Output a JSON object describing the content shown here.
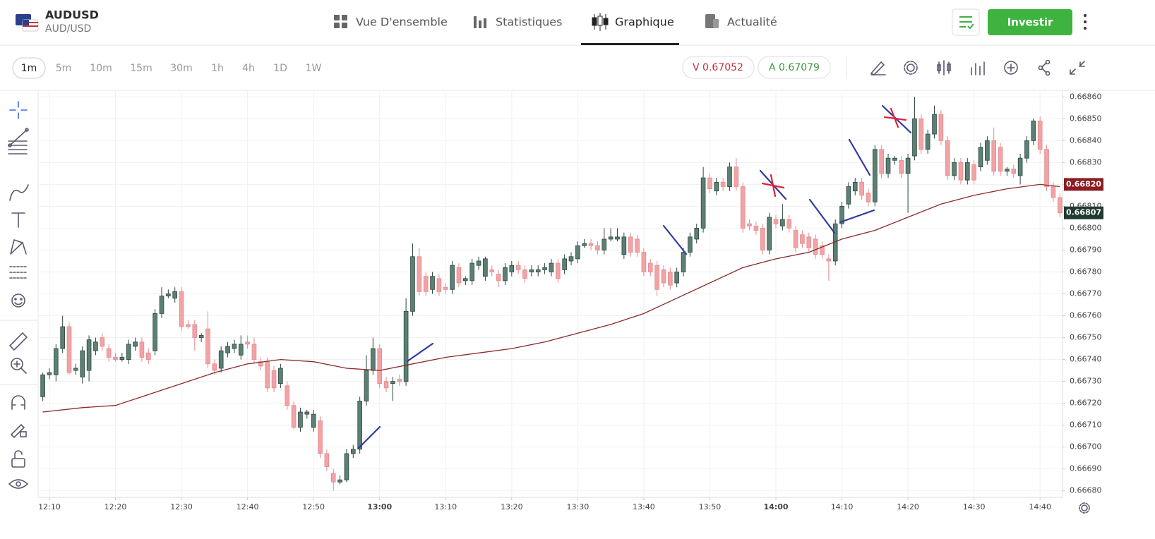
{
  "header": {
    "symbol": "AUDUSD",
    "pair": "AUD/USD",
    "tabs": [
      "Vue D'ensemble",
      "Statistiques",
      "Graphique",
      "Actualité"
    ],
    "active_tab": 2,
    "button": "Investir"
  },
  "toolbar": {
    "timeframes": [
      "1m",
      "5m",
      "10m",
      "15m",
      "30m",
      "1h",
      "4h",
      "1D",
      "1W"
    ],
    "active_timeframe": 0,
    "sell": "V 0.67052",
    "buy": "A 0.67079"
  },
  "chart_data": {
    "type": "candlestick",
    "up_color": "#5c8074",
    "up_edge": "#2b463d",
    "down_color": "#f2a3a6",
    "down_edge": "#e38a8e",
    "xlim": [
      728.4,
      883.4
    ],
    "xticks": [
      {
        "value": 730,
        "label": "12:10"
      },
      {
        "value": 740,
        "label": "12:20"
      },
      {
        "value": 750,
        "label": "12:30"
      },
      {
        "value": 760,
        "label": "12:40"
      },
      {
        "value": 770,
        "label": "12:50"
      },
      {
        "value": 780,
        "label": "13:00"
      },
      {
        "value": 790,
        "label": "13:10"
      },
      {
        "value": 800,
        "label": "13:20"
      },
      {
        "value": 810,
        "label": "13:30"
      },
      {
        "value": 820,
        "label": "13:40"
      },
      {
        "value": 830,
        "label": "13:50"
      },
      {
        "value": 840,
        "label": "14:00"
      },
      {
        "value": 850,
        "label": "14:10"
      },
      {
        "value": 860,
        "label": "14:20"
      },
      {
        "value": 870,
        "label": "14:30"
      },
      {
        "value": 880,
        "label": "14:40"
      }
    ],
    "ylim": [
      0.66677,
      0.66863
    ],
    "yticks": [
      {
        "value": 0.6668,
        "label": "0.66680"
      },
      {
        "value": 0.6669,
        "label": "0.66690"
      },
      {
        "value": 0.667,
        "label": "0.66700"
      },
      {
        "value": 0.6671,
        "label": "0.66710"
      },
      {
        "value": 0.6672,
        "label": "0.66720"
      },
      {
        "value": 0.6673,
        "label": "0.66730"
      },
      {
        "value": 0.6674,
        "label": "0.66740"
      },
      {
        "value": 0.6675,
        "label": "0.66750"
      },
      {
        "value": 0.6676,
        "label": "0.66760"
      },
      {
        "value": 0.6677,
        "label": "0.66770"
      },
      {
        "value": 0.6678,
        "label": "0.66780"
      },
      {
        "value": 0.6679,
        "label": "0.66790"
      },
      {
        "value": 0.668,
        "label": "0.66800"
      },
      {
        "value": 0.6681,
        "label": "0.66810"
      },
      {
        "value": 0.6682,
        "label": "0.66820"
      },
      {
        "value": 0.6683,
        "label": "0.66830"
      },
      {
        "value": 0.6684,
        "label": "0.66840"
      },
      {
        "value": 0.6685,
        "label": "0.66850"
      },
      {
        "value": 0.6686,
        "label": "0.66860"
      }
    ],
    "grid": true,
    "candles": [
      [
        729,
        0.66723,
        0.66734,
        0.66721,
        0.66733
      ],
      [
        730,
        0.66733,
        0.66736,
        0.66731,
        0.66734
      ],
      [
        731,
        0.66733,
        0.66747,
        0.6673,
        0.66745
      ],
      [
        732,
        0.66745,
        0.6676,
        0.66743,
        0.66755
      ],
      [
        733,
        0.66755,
        0.66757,
        0.66733,
        0.66734
      ],
      [
        734,
        0.66735,
        0.66738,
        0.66733,
        0.66736
      ],
      [
        735,
        0.66732,
        0.66746,
        0.66729,
        0.66744
      ],
      [
        736,
        0.66735,
        0.66751,
        0.6673,
        0.66749
      ],
      [
        737,
        0.66744,
        0.6675,
        0.66742,
        0.66748
      ],
      [
        738,
        0.6675,
        0.66752,
        0.66744,
        0.66746
      ],
      [
        739,
        0.66745,
        0.66747,
        0.66739,
        0.66741
      ],
      [
        740,
        0.66741,
        0.66743,
        0.66739,
        0.6674
      ],
      [
        741,
        0.6674,
        0.66743,
        0.66739,
        0.66741
      ],
      [
        742,
        0.6674,
        0.66749,
        0.66738,
        0.66747
      ],
      [
        743,
        0.66746,
        0.6675,
        0.66744,
        0.66748
      ],
      [
        744,
        0.66748,
        0.6675,
        0.66739,
        0.66741
      ],
      [
        745,
        0.66743,
        0.66745,
        0.66738,
        0.6674
      ],
      [
        746,
        0.66744,
        0.66763,
        0.66742,
        0.66761
      ],
      [
        747,
        0.66761,
        0.66773,
        0.66759,
        0.66769
      ],
      [
        748,
        0.66769,
        0.66772,
        0.66768,
        0.6677
      ],
      [
        749,
        0.66768,
        0.66773,
        0.66766,
        0.66771
      ],
      [
        750,
        0.66771,
        0.66773,
        0.66753,
        0.66755
      ],
      [
        751,
        0.66756,
        0.66758,
        0.66754,
        0.66755
      ],
      [
        752,
        0.66756,
        0.66758,
        0.66744,
        0.6675
      ],
      [
        753,
        0.6675,
        0.66752,
        0.66748,
        0.66751
      ],
      [
        754,
        0.66754,
        0.66762,
        0.66736,
        0.66738
      ],
      [
        755,
        0.66738,
        0.6674,
        0.66733,
        0.66735
      ],
      [
        756,
        0.66736,
        0.66746,
        0.66734,
        0.66744
      ],
      [
        757,
        0.66743,
        0.66748,
        0.66741,
        0.66746
      ],
      [
        758,
        0.66745,
        0.66749,
        0.66743,
        0.66747
      ],
      [
        759,
        0.66742,
        0.66751,
        0.6674,
        0.66747
      ],
      [
        760,
        0.66748,
        0.66751,
        0.66745,
        0.66747
      ],
      [
        761,
        0.66747,
        0.6675,
        0.66738,
        0.6674
      ],
      [
        762,
        0.66739,
        0.66741,
        0.66735,
        0.66737
      ],
      [
        763,
        0.66739,
        0.66741,
        0.66725,
        0.66727
      ],
      [
        764,
        0.66735,
        0.66737,
        0.66725,
        0.66727
      ],
      [
        765,
        0.66729,
        0.66738,
        0.66727,
        0.66736
      ],
      [
        766,
        0.66728,
        0.6673,
        0.66717,
        0.66719
      ],
      [
        767,
        0.66719,
        0.66721,
        0.66708,
        0.66709
      ],
      [
        768,
        0.66709,
        0.66718,
        0.66707,
        0.66716
      ],
      [
        769,
        0.66715,
        0.66717,
        0.66713,
        0.66716
      ],
      [
        770,
        0.66709,
        0.66717,
        0.66707,
        0.66715
      ],
      [
        771,
        0.66712,
        0.66714,
        0.66695,
        0.66697
      ],
      [
        772,
        0.66697,
        0.66699,
        0.66689,
        0.66691
      ],
      [
        773,
        0.66688,
        0.6669,
        0.6668,
        0.66684
      ],
      [
        774,
        0.66684,
        0.66687,
        0.66683,
        0.66685
      ],
      [
        775,
        0.66685,
        0.66699,
        0.66684,
        0.66697
      ],
      [
        776,
        0.66697,
        0.66701,
        0.66695,
        0.66699
      ],
      [
        777,
        0.66699,
        0.66723,
        0.66697,
        0.66721
      ],
      [
        778,
        0.66721,
        0.66742,
        0.66719,
        0.66735
      ],
      [
        779,
        0.66735,
        0.6675,
        0.66733,
        0.66745
      ],
      [
        780,
        0.66745,
        0.66747,
        0.66727,
        0.66729
      ],
      [
        781,
        0.6673,
        0.66732,
        0.66725,
        0.66727
      ],
      [
        782,
        0.66729,
        0.66732,
        0.66721,
        0.6673
      ],
      [
        783,
        0.66731,
        0.66733,
        0.66728,
        0.6673
      ],
      [
        784,
        0.6673,
        0.66768,
        0.66728,
        0.66762
      ],
      [
        785,
        0.66762,
        0.66793,
        0.6676,
        0.66787
      ],
      [
        786,
        0.66787,
        0.66791,
        0.66769,
        0.66771
      ],
      [
        787,
        0.66778,
        0.6678,
        0.66769,
        0.66771
      ],
      [
        788,
        0.66772,
        0.6678,
        0.6677,
        0.66778
      ],
      [
        789,
        0.66777,
        0.66779,
        0.66769,
        0.66771
      ],
      [
        790,
        0.66773,
        0.66775,
        0.6677,
        0.66772
      ],
      [
        791,
        0.66772,
        0.66785,
        0.6677,
        0.66783
      ],
      [
        792,
        0.66782,
        0.66784,
        0.66773,
        0.66775
      ],
      [
        793,
        0.66776,
        0.66778,
        0.66774,
        0.66777
      ],
      [
        794,
        0.66776,
        0.66786,
        0.66774,
        0.66784
      ],
      [
        795,
        0.66783,
        0.66787,
        0.66781,
        0.66785
      ],
      [
        796,
        0.66778,
        0.66787,
        0.66776,
        0.66786
      ],
      [
        797,
        0.66781,
        0.66783,
        0.66778,
        0.6678
      ],
      [
        798,
        0.66779,
        0.66781,
        0.66773,
        0.66776
      ],
      [
        799,
        0.66776,
        0.66784,
        0.66774,
        0.66782
      ],
      [
        800,
        0.6678,
        0.66785,
        0.66778,
        0.66783
      ],
      [
        801,
        0.66783,
        0.66785,
        0.66779,
        0.66781
      ],
      [
        802,
        0.66781,
        0.66783,
        0.66775,
        0.66777
      ],
      [
        803,
        0.6678,
        0.66783,
        0.66778,
        0.66781
      ],
      [
        804,
        0.6678,
        0.66783,
        0.66778,
        0.66781
      ],
      [
        805,
        0.66781,
        0.66784,
        0.66779,
        0.66782
      ],
      [
        806,
        0.6678,
        0.66786,
        0.66778,
        0.66784
      ],
      [
        807,
        0.66784,
        0.66786,
        0.66775,
        0.66777
      ],
      [
        808,
        0.66781,
        0.66788,
        0.66779,
        0.66786
      ],
      [
        809,
        0.66785,
        0.66789,
        0.66783,
        0.66787
      ],
      [
        810,
        0.66786,
        0.66794,
        0.66784,
        0.66792
      ],
      [
        811,
        0.66792,
        0.66795,
        0.66791,
        0.66793
      ],
      [
        812,
        0.66793,
        0.66795,
        0.6679,
        0.66792
      ],
      [
        813,
        0.66792,
        0.66794,
        0.66788,
        0.6679
      ],
      [
        814,
        0.6679,
        0.668,
        0.66788,
        0.66795
      ],
      [
        815,
        0.66795,
        0.668,
        0.66794,
        0.66796
      ],
      [
        816,
        0.66795,
        0.668,
        0.66794,
        0.66796
      ],
      [
        817,
        0.66788,
        0.66798,
        0.66786,
        0.66796
      ],
      [
        818,
        0.66796,
        0.66798,
        0.66787,
        0.66789
      ],
      [
        819,
        0.66795,
        0.66797,
        0.66787,
        0.66789
      ],
      [
        820,
        0.66789,
        0.66791,
        0.66778,
        0.6678
      ],
      [
        821,
        0.66784,
        0.66786,
        0.66778,
        0.6678
      ],
      [
        822,
        0.66783,
        0.66785,
        0.66769,
        0.66772
      ],
      [
        823,
        0.66781,
        0.66783,
        0.66773,
        0.66775
      ],
      [
        824,
        0.6678,
        0.66782,
        0.66772,
        0.66774
      ],
      [
        825,
        0.66775,
        0.66782,
        0.66773,
        0.6678
      ],
      [
        826,
        0.6678,
        0.66791,
        0.66778,
        0.66789
      ],
      [
        827,
        0.66789,
        0.66798,
        0.66787,
        0.66796
      ],
      [
        828,
        0.66795,
        0.66802,
        0.66793,
        0.668
      ],
      [
        829,
        0.668,
        0.66828,
        0.66798,
        0.66823
      ],
      [
        830,
        0.66823,
        0.66825,
        0.66816,
        0.66818
      ],
      [
        831,
        0.66817,
        0.66823,
        0.66815,
        0.66821
      ],
      [
        832,
        0.66821,
        0.66823,
        0.66817,
        0.66819
      ],
      [
        833,
        0.66819,
        0.6683,
        0.66817,
        0.66828
      ],
      [
        834,
        0.66828,
        0.66832,
        0.66817,
        0.66819
      ],
      [
        835,
        0.66819,
        0.66821,
        0.66798,
        0.668
      ],
      [
        836,
        0.66802,
        0.66804,
        0.66799,
        0.66801
      ],
      [
        837,
        0.66801,
        0.66803,
        0.66797,
        0.66799
      ],
      [
        838,
        0.668,
        0.66802,
        0.66788,
        0.6679
      ],
      [
        839,
        0.6679,
        0.66807,
        0.66788,
        0.66805
      ],
      [
        840,
        0.66804,
        0.66806,
        0.668,
        0.66802
      ],
      [
        841,
        0.66801,
        0.66811,
        0.66799,
        0.66804
      ],
      [
        842,
        0.66804,
        0.66806,
        0.66798,
        0.668
      ],
      [
        843,
        0.66799,
        0.66801,
        0.66789,
        0.66791
      ],
      [
        844,
        0.66797,
        0.66799,
        0.66791,
        0.66793
      ],
      [
        845,
        0.66796,
        0.66798,
        0.66789,
        0.66791
      ],
      [
        846,
        0.66795,
        0.66797,
        0.66786,
        0.66788
      ],
      [
        847,
        0.66792,
        0.66794,
        0.66786,
        0.66788
      ],
      [
        848,
        0.66786,
        0.66788,
        0.66776,
        0.66785
      ],
      [
        849,
        0.66785,
        0.66804,
        0.66783,
        0.66802
      ],
      [
        850,
        0.66802,
        0.66812,
        0.668,
        0.6681
      ],
      [
        851,
        0.66811,
        0.66821,
        0.66809,
        0.66819
      ],
      [
        852,
        0.66817,
        0.66823,
        0.66815,
        0.66821
      ],
      [
        853,
        0.66821,
        0.66823,
        0.66813,
        0.66815
      ],
      [
        854,
        0.66816,
        0.66818,
        0.6681,
        0.66812
      ],
      [
        855,
        0.66812,
        0.66838,
        0.6681,
        0.66836
      ],
      [
        856,
        0.66836,
        0.66838,
        0.66823,
        0.66825
      ],
      [
        857,
        0.66825,
        0.66834,
        0.66823,
        0.66832
      ],
      [
        858,
        0.66831,
        0.66833,
        0.66829,
        0.66832
      ],
      [
        859,
        0.66831,
        0.66833,
        0.66823,
        0.66825
      ],
      [
        860,
        0.66825,
        0.66834,
        0.66807,
        0.66832
      ],
      [
        861,
        0.66833,
        0.6686,
        0.66831,
        0.6685
      ],
      [
        862,
        0.6685,
        0.66852,
        0.66834,
        0.66836
      ],
      [
        863,
        0.66836,
        0.66845,
        0.66834,
        0.66843
      ],
      [
        864,
        0.66843,
        0.66856,
        0.66841,
        0.66852
      ],
      [
        865,
        0.66852,
        0.66854,
        0.66838,
        0.6684
      ],
      [
        866,
        0.6684,
        0.66842,
        0.66822,
        0.66824
      ],
      [
        867,
        0.66824,
        0.66832,
        0.66822,
        0.6683
      ],
      [
        868,
        0.6683,
        0.66832,
        0.6682,
        0.66822
      ],
      [
        869,
        0.66822,
        0.66832,
        0.6682,
        0.6683
      ],
      [
        870,
        0.66829,
        0.66831,
        0.6682,
        0.66822
      ],
      [
        871,
        0.66828,
        0.66839,
        0.66826,
        0.66837
      ],
      [
        872,
        0.66831,
        0.66842,
        0.66829,
        0.6684
      ],
      [
        873,
        0.6684,
        0.66846,
        0.66824,
        0.66826
      ],
      [
        874,
        0.66837,
        0.66839,
        0.66824,
        0.66826
      ],
      [
        875,
        0.66826,
        0.66828,
        0.66824,
        0.66827
      ],
      [
        876,
        0.66827,
        0.66829,
        0.66823,
        0.66825
      ],
      [
        877,
        0.66824,
        0.66834,
        0.6682,
        0.66832
      ],
      [
        878,
        0.66832,
        0.66842,
        0.6683,
        0.6684
      ],
      [
        879,
        0.6684,
        0.6685,
        0.66838,
        0.66849
      ],
      [
        880,
        0.66849,
        0.66851,
        0.66834,
        0.66836
      ],
      [
        881,
        0.66836,
        0.66838,
        0.66817,
        0.66819
      ],
      [
        882,
        0.66819,
        0.66821,
        0.66812,
        0.66814
      ],
      [
        883,
        0.66814,
        0.66816,
        0.66805,
        0.66807
      ]
    ],
    "moving_average": {
      "color": "#8a2a2a",
      "x": [
        729,
        735,
        740,
        745,
        750,
        755,
        760,
        765,
        770,
        775,
        780,
        785,
        790,
        795,
        800,
        805,
        810,
        815,
        820,
        825,
        830,
        835,
        840,
        845,
        850,
        855,
        860,
        865,
        870,
        875,
        880,
        883
      ],
      "values": [
        0.66716,
        0.66718,
        0.66719,
        0.66724,
        0.66729,
        0.66734,
        0.66738,
        0.6674,
        0.66739,
        0.66736,
        0.66735,
        0.66738,
        0.66741,
        0.66743,
        0.66745,
        0.66748,
        0.66752,
        0.66756,
        0.66761,
        0.66768,
        0.66775,
        0.66782,
        0.66786,
        0.66789,
        0.66795,
        0.66799,
        0.66805,
        0.66811,
        0.66815,
        0.66818,
        0.6682,
        0.66819
      ]
    },
    "price_labels": [
      {
        "value": 0.6682,
        "label": "0.66820",
        "color": "#8b1c22"
      },
      {
        "value": 0.66807,
        "label": "0.66807",
        "color": "#1f3b31"
      }
    ]
  }
}
